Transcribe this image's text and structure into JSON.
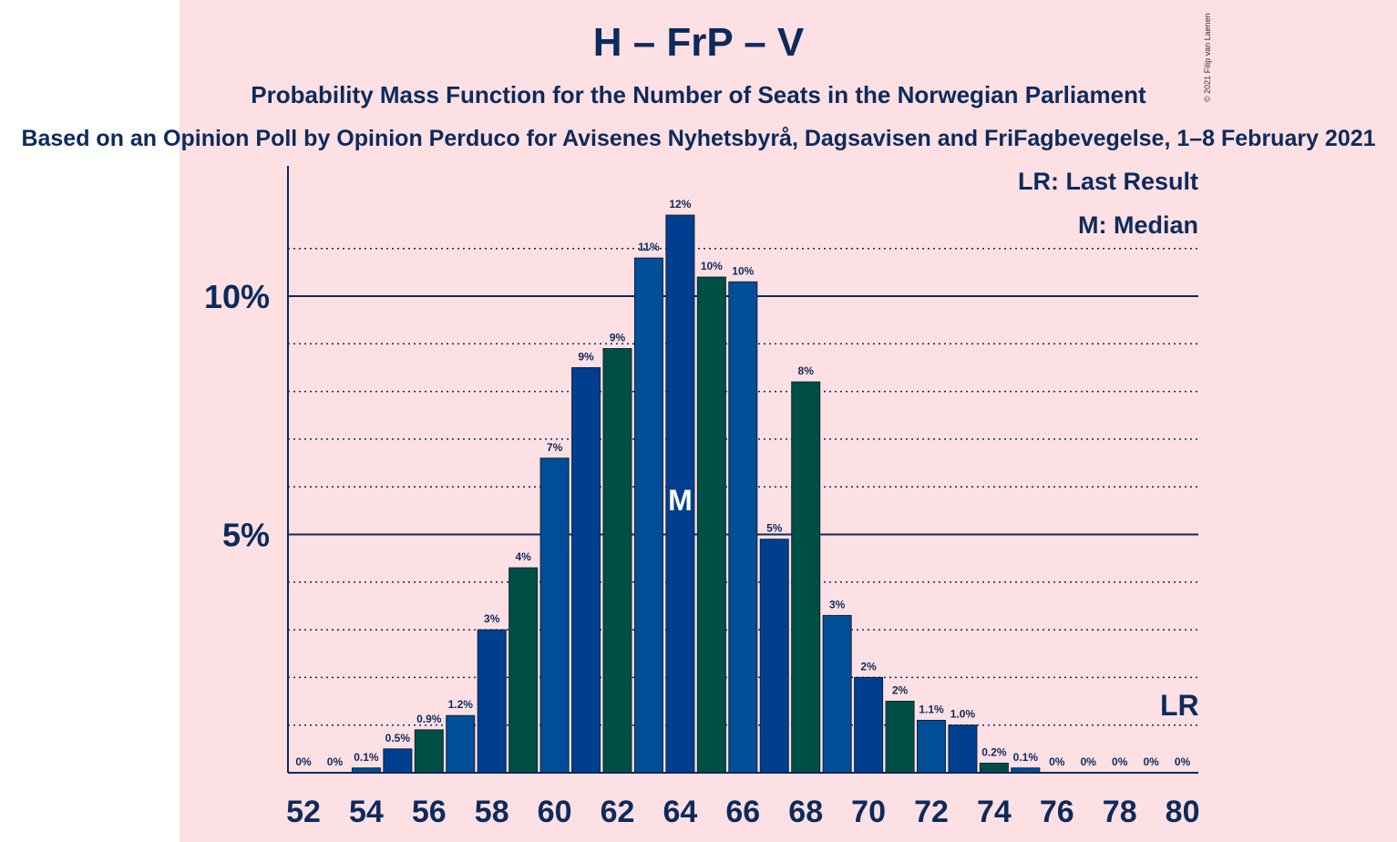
{
  "title": "H – FrP – V",
  "subtitle": "Probability Mass Function for the Number of Seats in the Norwegian Parliament",
  "source": "Based on an Opinion Poll by Opinion Perduco for Avisenes Nyhetsbyrå, Dagsavisen and FriFagbevegelse, 1–8 February 2021",
  "copyright": "© 2021 Filip van Laenen",
  "legend": {
    "last_result": "LR: Last Result",
    "median": "M: Median"
  },
  "markers": {
    "median_label": "M",
    "last_result_label": "LR",
    "median_seat": 64,
    "last_result_seat": 80
  },
  "colors": {
    "background": "#fde0e3",
    "text": "#0d2a5c",
    "bar_blue_1": "#004e96",
    "bar_blue_2": "#003f8f",
    "bar_green": "#004f44",
    "axis": "#0d2a5c"
  },
  "chart_data": {
    "type": "bar",
    "title": "H – FrP – V",
    "xlabel": "",
    "ylabel": "",
    "ylim": [
      0,
      12.5
    ],
    "yticks": [
      {
        "value": 5,
        "label": "5%"
      },
      {
        "value": 10,
        "label": "10%"
      }
    ],
    "grid": "dotted every 1%, solid at 5% and 10%",
    "xtick_labels": [
      "52",
      "54",
      "56",
      "58",
      "60",
      "62",
      "64",
      "66",
      "68",
      "70",
      "72",
      "74",
      "76",
      "78",
      "80"
    ],
    "categories": [
      52,
      53,
      54,
      55,
      56,
      57,
      58,
      59,
      60,
      61,
      62,
      63,
      64,
      65,
      66,
      67,
      68,
      69,
      70,
      71,
      72,
      73,
      74,
      75,
      76,
      77,
      78,
      79,
      80
    ],
    "values": [
      0,
      0,
      0.1,
      0.5,
      0.9,
      1.2,
      3.0,
      4.3,
      6.6,
      8.5,
      8.9,
      10.8,
      11.7,
      10.4,
      10.3,
      4.9,
      8.2,
      3.3,
      2.0,
      1.5,
      1.1,
      1.0,
      0.2,
      0.1,
      0,
      0,
      0,
      0,
      0
    ],
    "labels": [
      "0%",
      "0%",
      "0.1%",
      "0.5%",
      "0.9%",
      "1.2%",
      "3%",
      "4%",
      "7%",
      "9%",
      "9%",
      "11%",
      "12%",
      "10%",
      "10%",
      "5%",
      "8%",
      "3%",
      "2%",
      "2%",
      "1.1%",
      "1.0%",
      "0.2%",
      "0.1%",
      "0%",
      "0%",
      "0%",
      "0%",
      "0%"
    ],
    "colors": [
      "blue1",
      "blue2",
      "blue1",
      "blue2",
      "green",
      "blue1",
      "blue2",
      "green",
      "blue1",
      "blue2",
      "green",
      "blue1",
      "blue2",
      "green",
      "blue1",
      "blue2",
      "green",
      "blue1",
      "blue2",
      "green",
      "blue1",
      "blue2",
      "green",
      "blue1",
      "blue2",
      "green",
      "blue1",
      "blue2",
      "green"
    ]
  }
}
